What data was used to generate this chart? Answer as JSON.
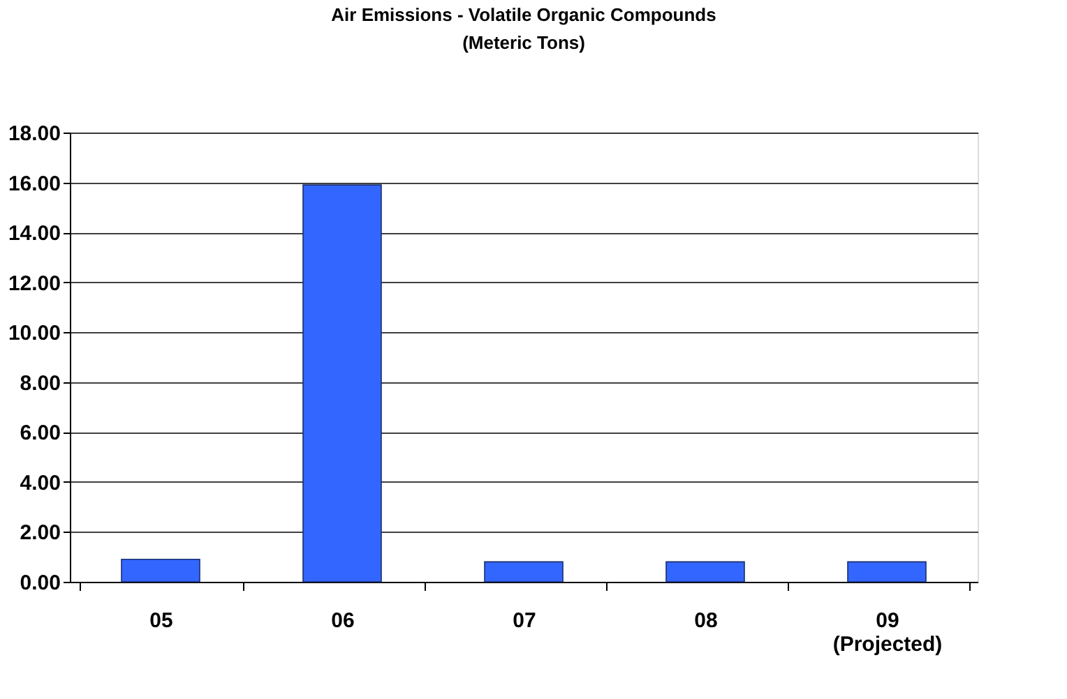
{
  "chart_data": {
    "type": "bar",
    "title": [
      "Air Emissions - Volatile Organic Compounds",
      "(Meteric Tons)"
    ],
    "categories": [
      "05",
      "06",
      "07",
      "08",
      "09\n(Projected)"
    ],
    "values": [
      0.9,
      15.9,
      0.8,
      0.8,
      0.8
    ],
    "color": "#3366ff",
    "ylim": [
      0,
      18
    ],
    "yticks": [
      {
        "value": 0,
        "label": "0.00"
      },
      {
        "value": 2,
        "label": "2.00"
      },
      {
        "value": 4,
        "label": "4.00"
      },
      {
        "value": 6,
        "label": "6.00"
      },
      {
        "value": 8,
        "label": "8.00"
      },
      {
        "value": 10,
        "label": "10.00"
      },
      {
        "value": 12,
        "label": "12.00"
      },
      {
        "value": 14,
        "label": "14.00"
      },
      {
        "value": 16,
        "label": "16.00"
      },
      {
        "value": 18,
        "label": "18.00"
      }
    ],
    "grid": "y",
    "legend": false
  }
}
